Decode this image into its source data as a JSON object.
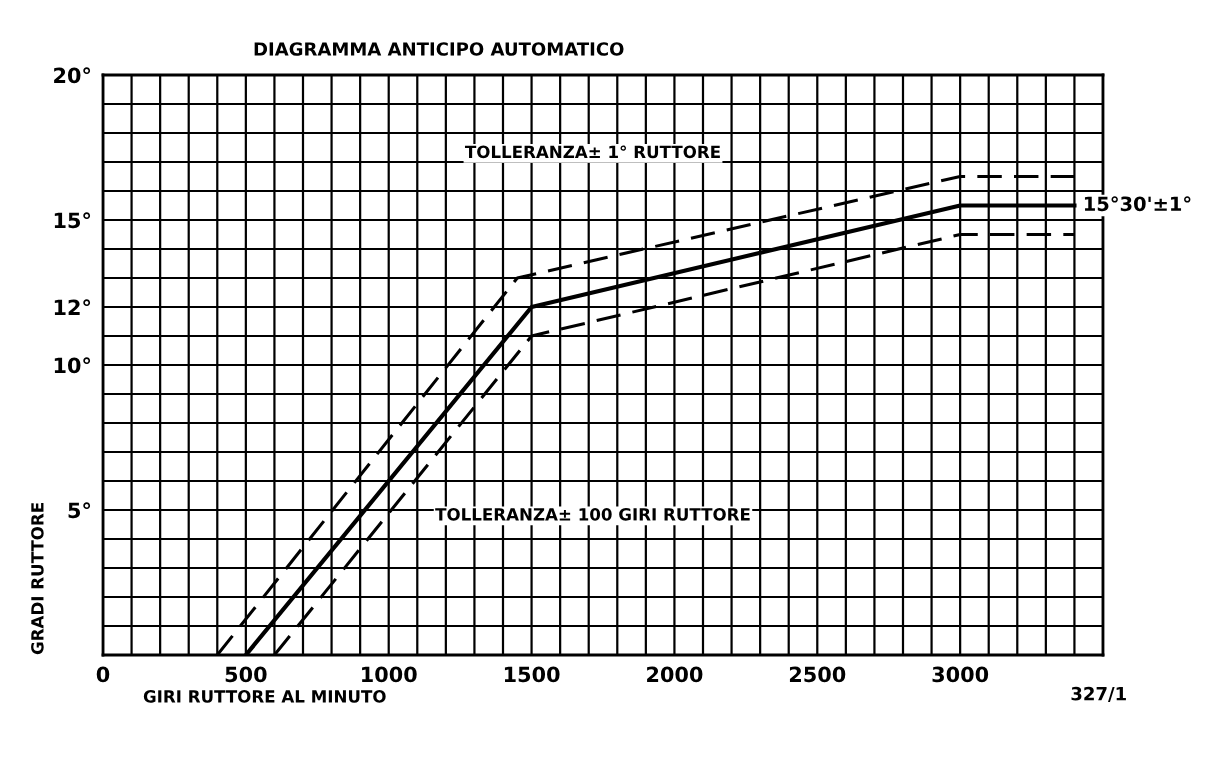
{
  "chart_data": {
    "type": "line",
    "title": "DIAGRAMMA ANTICIPO AUTOMATICO",
    "xlabel": "GIRI RUTTORE AL MINUTO",
    "ylabel": "GRADI RUTTORE",
    "series": [
      {
        "color": "#000000",
        "line_style": "solid",
        "x": [
          500,
          1500,
          3000,
          3400
        ],
        "values": [
          0,
          12,
          15.5,
          15.5
        ]
      },
      {
        "color": "#000000",
        "line_style": "dashed",
        "x": [
          400,
          1450,
          3000,
          3400
        ],
        "values": [
          0,
          13,
          16.5,
          16.5
        ]
      },
      {
        "color": "#000000",
        "line_style": "dashed",
        "x": [
          600,
          1500,
          3000,
          3400
        ],
        "values": [
          0,
          11,
          14.5,
          14.5
        ]
      }
    ],
    "xlim": [
      0,
      3500
    ],
    "ylim": [
      0,
      20
    ],
    "xticks": [
      0,
      {
        "value": 100,
        "label": null
      },
      {
        "value": 200,
        "label": null
      },
      {
        "value": 300,
        "label": null
      },
      {
        "value": 400,
        "label": null
      },
      500,
      {
        "value": 600,
        "label": null
      },
      {
        "value": 700,
        "label": null
      },
      {
        "value": 800,
        "label": null
      },
      {
        "value": 900,
        "label": null
      },
      1000,
      {
        "value": 1100,
        "label": null
      },
      {
        "value": 1200,
        "label": null
      },
      {
        "value": 1300,
        "label": null
      },
      {
        "value": 1400,
        "label": null
      },
      1500,
      {
        "value": 1600,
        "label": null
      },
      {
        "value": 1700,
        "label": null
      },
      {
        "value": 1800,
        "label": null
      },
      {
        "value": 1900,
        "label": null
      },
      2000,
      {
        "value": 2100,
        "label": null
      },
      {
        "value": 2200,
        "label": null
      },
      {
        "value": 2300,
        "label": null
      },
      {
        "value": 2400,
        "label": null
      },
      2500,
      {
        "value": 2600,
        "label": null
      },
      {
        "value": 2700,
        "label": null
      },
      {
        "value": 2800,
        "label": null
      },
      {
        "value": 2900,
        "label": null
      },
      3000,
      {
        "value": 3100,
        "label": null
      },
      {
        "value": 3200,
        "label": null
      },
      {
        "value": 3300,
        "label": null
      },
      {
        "value": 3400,
        "label": null
      },
      {
        "value": 3500,
        "label": null
      }
    ],
    "yticks": [
      {
        "value": 0,
        "label": null
      },
      {
        "value": 1,
        "label": null
      },
      {
        "value": 2,
        "label": null
      },
      {
        "value": 3,
        "label": null
      },
      {
        "value": 4,
        "label": null
      },
      {
        "value": 5,
        "label": "5°"
      },
      {
        "value": 6,
        "label": null
      },
      {
        "value": 7,
        "label": null
      },
      {
        "value": 8,
        "label": null
      },
      {
        "value": 9,
        "label": null
      },
      {
        "value": 10,
        "label": "10°"
      },
      {
        "value": 11,
        "label": null
      },
      {
        "value": 12,
        "label": "12°"
      },
      {
        "value": 13,
        "label": null
      },
      {
        "value": 14,
        "label": null
      },
      {
        "value": 15,
        "label": "15°"
      },
      {
        "value": 16,
        "label": null
      },
      {
        "value": 17,
        "label": null
      },
      {
        "value": 18,
        "label": null
      },
      {
        "value": 19,
        "label": null
      },
      {
        "value": 20,
        "label": "20°"
      }
    ],
    "grid": true,
    "annotations": [
      "TOLLERANZA± 1° RUTTORE",
      "TOLLERANZA± 100 GIRI RUTTORE",
      {
        "text": "15°30'±1°",
        "x": 3400,
        "y": 15.5
      },
      "327/1"
    ]
  }
}
